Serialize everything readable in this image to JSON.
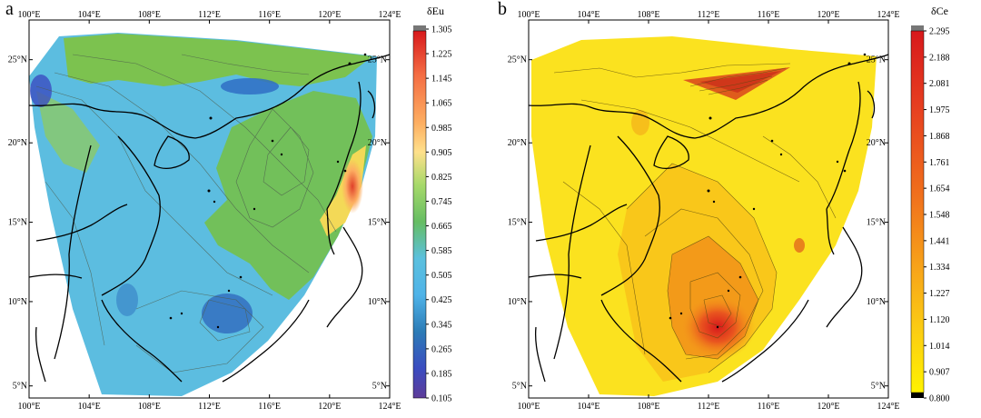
{
  "panels": [
    {
      "id": "a",
      "label": "a",
      "variable": "δEu",
      "top_lon": [
        "100°E",
        "104°E",
        "108°E",
        "112°E",
        "116°E",
        "120°E",
        "124°E"
      ],
      "bottom_lon": [
        "100°E",
        "104°E",
        "108°E",
        "112°E",
        "116°E",
        "120°E",
        "124°E"
      ],
      "left_lat": [
        "25°N",
        "20°N",
        "15°N",
        "10°N",
        "5°N"
      ],
      "right_lat": [
        "25°N",
        "20°N",
        "15°N",
        "10°N",
        "5°N"
      ],
      "colorbar": {
        "title": "δEu",
        "ticks": [
          "1.305",
          "1.225",
          "1.145",
          "1.065",
          "0.985",
          "0.905",
          "0.825",
          "0.745",
          "0.665",
          "0.585",
          "0.505",
          "0.425",
          "0.345",
          "0.265",
          "0.185",
          "0.105"
        ],
        "colors": [
          "#d7191c",
          "#f46d43",
          "#fdae61",
          "#fee08b",
          "#a6d96a",
          "#66bd63",
          "#5bc0de",
          "#4fb3e8",
          "#2c7bb6",
          "#3b4cc0",
          "#5e3c99"
        ]
      }
    },
    {
      "id": "b",
      "label": "b",
      "variable": "δCe",
      "top_lon": [
        "100°E",
        "104°E",
        "108°E",
        "112°E",
        "116°E",
        "120°E",
        "124°E"
      ],
      "bottom_lon": [
        "100°E",
        "104°E",
        "108°E",
        "112°E",
        "116°E",
        "120°E",
        "124°E"
      ],
      "left_lat": [
        "25°N",
        "20°N",
        "15°N",
        "10°N",
        "5°N"
      ],
      "right_lat": [
        "25°N",
        "20°N",
        "15°N",
        "10°N",
        "5°N"
      ],
      "colorbar": {
        "title": "δCe",
        "ticks": [
          "2.295",
          "2.188",
          "2.081",
          "1.975",
          "1.868",
          "1.761",
          "1.654",
          "1.548",
          "1.441",
          "1.334",
          "1.227",
          "1.120",
          "1.014",
          "0.907",
          "0.800"
        ],
        "colors": [
          "#d7191c",
          "#e63d20",
          "#f06f1c",
          "#f7a21a",
          "#fbcb14",
          "#fde725",
          "#fff200"
        ]
      }
    }
  ]
}
